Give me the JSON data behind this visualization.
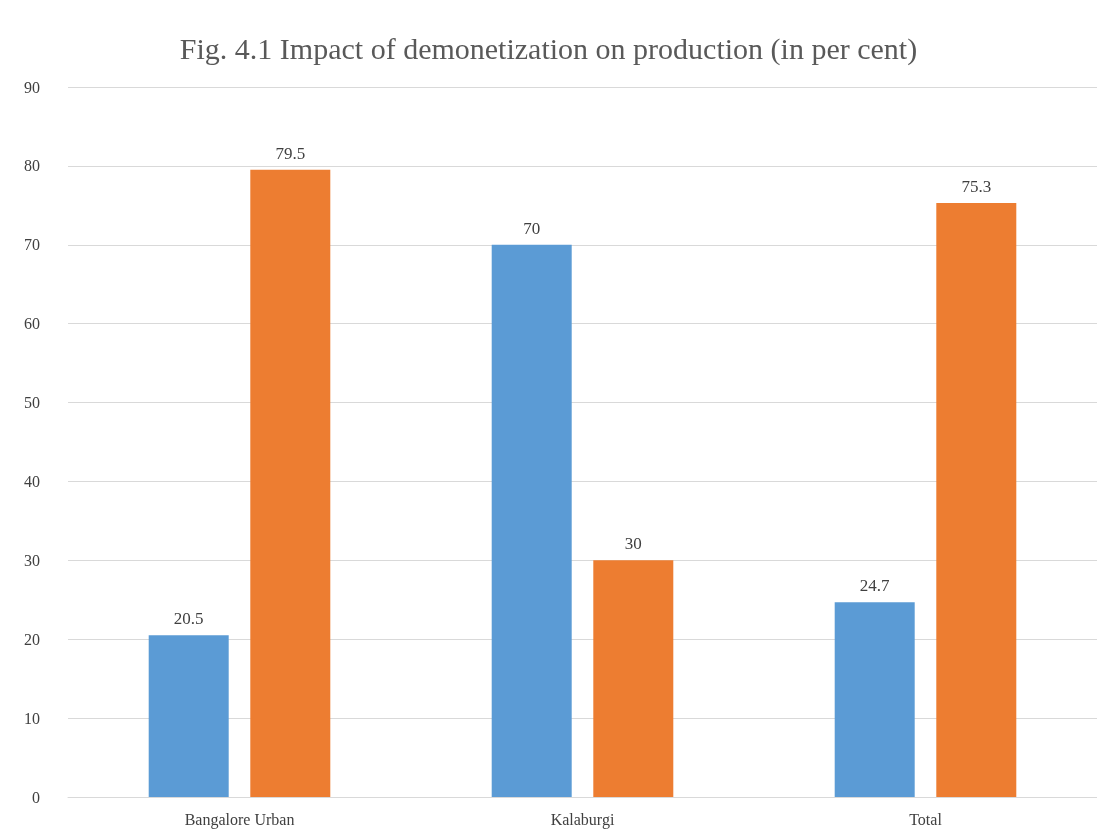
{
  "chart_data": {
    "type": "bar",
    "title": "Fig. 4.1 Impact of demonetization on production (in per cent)",
    "categories": [
      "Bangalore Urban",
      "Kalaburgi",
      "Total"
    ],
    "series": [
      {
        "color": "#5b9bd5",
        "values": [
          20.5,
          70,
          24.7
        ]
      },
      {
        "color": "#ed7d31",
        "values": [
          79.5,
          30,
          75.3
        ]
      }
    ],
    "ylim": [
      0,
      90
    ],
    "yticks": [
      0,
      10,
      20,
      30,
      40,
      50,
      60,
      70,
      80,
      90
    ],
    "grid": "y",
    "data_labels": true
  }
}
